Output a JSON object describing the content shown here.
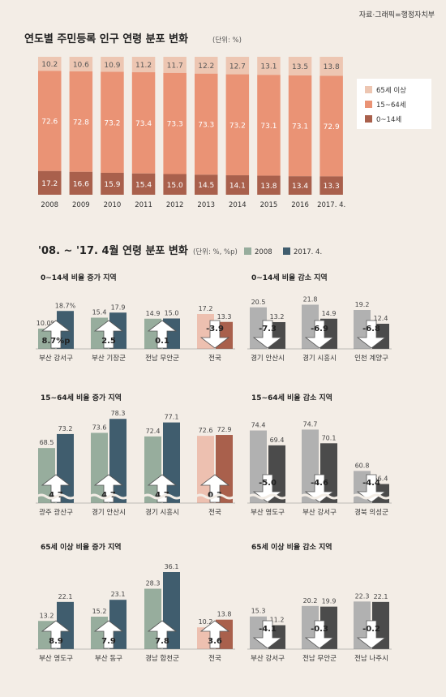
{
  "source": "자료·그래픽=행정자치부",
  "colors": {
    "bg": "#f3ede6",
    "age65": "#edc6b2",
    "age1564": "#ea9375",
    "age014": "#a9604c",
    "v2008": "#97ad9d",
    "v2017": "#405d6e",
    "national2008": "#edc0b0",
    "national2017": "#a9604c",
    "dec2008": "#b1b1b1",
    "dec2017": "#4b4b4b"
  },
  "chart_data": [
    {
      "type": "bar",
      "stacked": true,
      "title": "연도별 주민등록 인구 연령 분포 변화",
      "unit": "(단위: %)",
      "categories": [
        "2008",
        "2009",
        "2010",
        "2011",
        "2012",
        "2013",
        "2014",
        "2015",
        "2016",
        "2017. 4."
      ],
      "series": [
        {
          "name": "0~14세",
          "values": [
            17.2,
            16.6,
            15.9,
            15.4,
            15.0,
            14.5,
            14.1,
            13.8,
            13.4,
            13.3
          ]
        },
        {
          "name": "15~64세",
          "values": [
            72.6,
            72.8,
            73.2,
            73.4,
            73.3,
            73.3,
            73.2,
            73.1,
            73.1,
            72.9
          ]
        },
        {
          "name": "65세 이상",
          "values": [
            10.2,
            10.6,
            10.9,
            11.2,
            11.7,
            12.2,
            12.7,
            13.1,
            13.5,
            13.8
          ]
        }
      ],
      "legend_position": "right"
    },
    {
      "type": "bar",
      "title": "'08. ~ '17. 4월 연령 분포 변화",
      "unit": "(단위: %, %p)",
      "legend": [
        "2008",
        "2017. 4."
      ],
      "panels": [
        {
          "title": "0~14세 비율 증가 지역",
          "items": [
            {
              "name": "부산 강서구",
              "v2008": 10.0,
              "v2017": 18.7,
              "l2008": "10.0%",
              "l2017": "18.7%",
              "change": "8.7%p",
              "dir": "up"
            },
            {
              "name": "부산 기장군",
              "v2008": 15.4,
              "v2017": 17.9,
              "l2008": "15.4",
              "l2017": "17.9",
              "change": "2.5",
              "dir": "up"
            },
            {
              "name": "전남 무안군",
              "v2008": 14.9,
              "v2017": 15.0,
              "l2008": "14.9",
              "l2017": "15.0",
              "change": "0.1",
              "dir": "up"
            },
            {
              "name": "전국",
              "v2008": 17.2,
              "v2017": 13.3,
              "l2008": "17.2",
              "l2017": "13.3",
              "change": "-3.9",
              "dir": "down",
              "national": true
            }
          ]
        },
        {
          "title": "0~14세 비율 감소 지역",
          "items": [
            {
              "name": "경기 안산시",
              "v2008": 20.5,
              "v2017": 13.2,
              "l2008": "20.5",
              "l2017": "13.2",
              "change": "-7.3",
              "dir": "down"
            },
            {
              "name": "경기 시흥시",
              "v2008": 21.8,
              "v2017": 14.9,
              "l2008": "21.8",
              "l2017": "14.9",
              "change": "-6.9",
              "dir": "down"
            },
            {
              "name": "인천 계양구",
              "v2008": 19.2,
              "v2017": 12.4,
              "l2008": "19.2",
              "l2017": "12.4",
              "change": "-6.8",
              "dir": "down"
            }
          ]
        },
        {
          "title": "15~64세 비율 증가 지역",
          "items": [
            {
              "name": "광주 광산구",
              "v2008": 68.5,
              "v2017": 73.2,
              "l2008": "68.5",
              "l2017": "73.2",
              "change": "4.7",
              "dir": "up"
            },
            {
              "name": "경기 안산시",
              "v2008": 73.6,
              "v2017": 78.3,
              "l2008": "73.6",
              "l2017": "78.3",
              "change": "4.7",
              "dir": "up"
            },
            {
              "name": "경기 시흥시",
              "v2008": 72.4,
              "v2017": 77.1,
              "l2008": "72.4",
              "l2017": "77.1",
              "change": "4.7",
              "dir": "up"
            },
            {
              "name": "전국",
              "v2008": 72.6,
              "v2017": 72.9,
              "l2008": "72.6",
              "l2017": "72.9",
              "change": "0.3",
              "dir": "up",
              "national": true
            }
          ]
        },
        {
          "title": "15~64세 비율 감소 지역",
          "items": [
            {
              "name": "부산 영도구",
              "v2008": 74.4,
              "v2017": 69.4,
              "l2008": "74.4",
              "l2017": "69.4",
              "change": "-5.0",
              "dir": "down"
            },
            {
              "name": "부산 강서구",
              "v2008": 74.7,
              "v2017": 70.1,
              "l2008": "74.7",
              "l2017": "70.1",
              "change": "-4.6",
              "dir": "down"
            },
            {
              "name": "경북 의성군",
              "v2008": 60.8,
              "v2017": 56.4,
              "l2008": "60.8",
              "l2017": "56.4",
              "change": "-4.4",
              "dir": "down"
            }
          ]
        },
        {
          "title": "65세 이상 비율 증가 지역",
          "items": [
            {
              "name": "부산 영도구",
              "v2008": 13.2,
              "v2017": 22.1,
              "l2008": "13.2",
              "l2017": "22.1",
              "change": "8.9",
              "dir": "up"
            },
            {
              "name": "부산 동구",
              "v2008": 15.2,
              "v2017": 23.1,
              "l2008": "15.2",
              "l2017": "23.1",
              "change": "7.9",
              "dir": "up"
            },
            {
              "name": "경남 합천군",
              "v2008": 28.3,
              "v2017": 36.1,
              "l2008": "28.3",
              "l2017": "36.1",
              "change": "7.8",
              "dir": "up"
            },
            {
              "name": "전국",
              "v2008": 10.2,
              "v2017": 13.8,
              "l2008": "10.2",
              "l2017": "13.8",
              "change": "3.6",
              "dir": "up",
              "national": true
            }
          ]
        },
        {
          "title": "65세 이상 비율 감소 지역",
          "items": [
            {
              "name": "부산 강서구",
              "v2008": 15.3,
              "v2017": 11.2,
              "l2008": "15.3",
              "l2017": "11.2",
              "change": "-4.1",
              "dir": "down"
            },
            {
              "name": "전남 무안군",
              "v2008": 20.2,
              "v2017": 19.9,
              "l2008": "20.2",
              "l2017": "19.9",
              "change": "-0.3",
              "dir": "down"
            },
            {
              "name": "전남 나주시",
              "v2008": 22.3,
              "v2017": 22.1,
              "l2008": "22.3",
              "l2017": "22.1",
              "change": "-0.2",
              "dir": "down"
            }
          ]
        }
      ]
    }
  ]
}
